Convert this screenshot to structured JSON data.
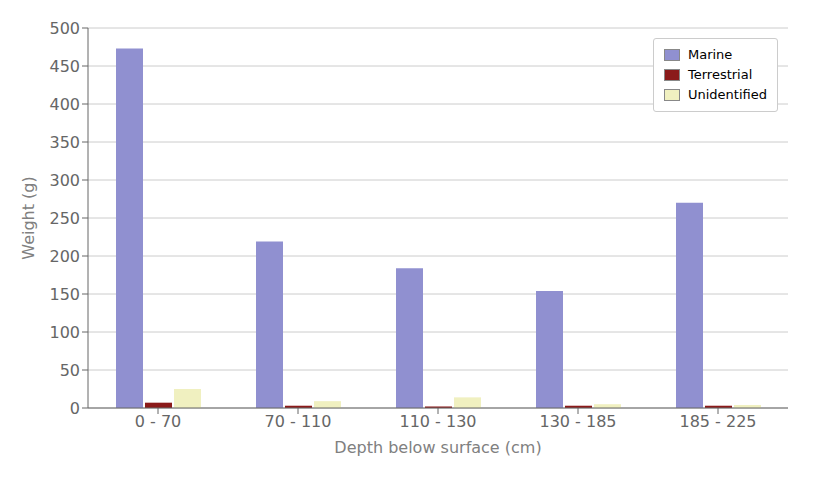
{
  "chart_data": {
    "type": "bar",
    "categories": [
      "0 - 70",
      "70 - 110",
      "110 - 130",
      "130 - 185",
      "185 - 225"
    ],
    "series": [
      {
        "name": "Marine",
        "color": "#9090d0",
        "values": [
          473,
          219,
          184,
          154,
          270
        ]
      },
      {
        "name": "Terrestrial",
        "color": "#8b1a1a",
        "values": [
          7,
          3,
          2,
          3,
          3
        ]
      },
      {
        "name": "Unidentified",
        "color": "#f0f0c0",
        "values": [
          25,
          9,
          14,
          5,
          4
        ]
      }
    ],
    "xlabel": "Depth below surface (cm)",
    "ylabel": "Weight (g)",
    "ylim": [
      0,
      500
    ],
    "yticks": [
      0,
      50,
      100,
      150,
      200,
      250,
      300,
      350,
      400,
      450,
      500
    ],
    "grid": true,
    "legend": "upper right"
  }
}
